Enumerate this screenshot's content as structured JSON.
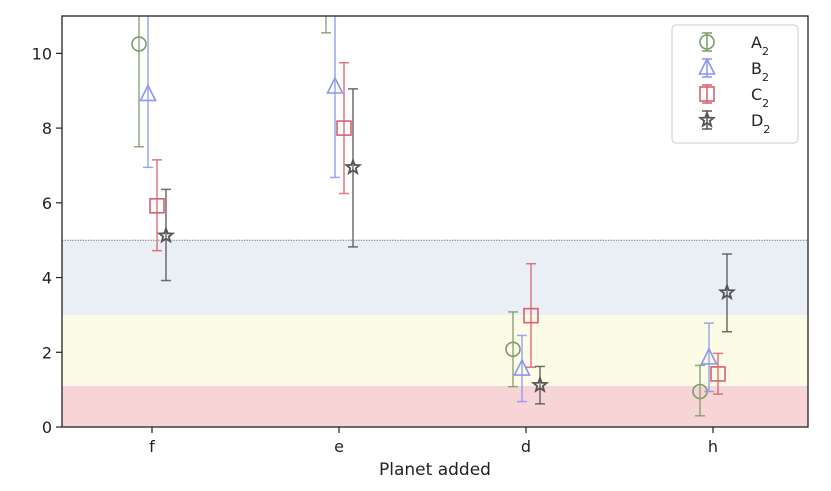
{
  "chart_data": {
    "type": "scatter",
    "subtype": "error-bar",
    "categories": [
      "f",
      "e",
      "d",
      "h"
    ],
    "xlabel": "Planet added",
    "ylabel": "",
    "ylim": [
      0,
      11
    ],
    "yticks": [
      0,
      2,
      4,
      6,
      8,
      10
    ],
    "grid": false,
    "legend_position": "top-right",
    "reference_line": {
      "y": 5,
      "style": "dotted",
      "color": "#555555"
    },
    "bands": [
      {
        "y0": 0,
        "y1": 1.1,
        "color": "#f7d4d6"
      },
      {
        "y0": 1.1,
        "y1": 3.0,
        "color": "#fbfbe6"
      },
      {
        "y0": 3.0,
        "y1": 5.0,
        "color": "#e9eff5"
      }
    ],
    "series": [
      {
        "name": "A",
        "subscript": "2",
        "marker": "circle",
        "color": "#7d9b6a",
        "values": [
          10.25,
          11.3,
          2.08,
          0.95
        ],
        "err_low": [
          7.5,
          10.55,
          1.08,
          0.3
        ],
        "err_high": [
          11.5,
          11.5,
          3.08,
          1.65
        ]
      },
      {
        "name": "B",
        "subscript": "2",
        "marker": "triangle",
        "color": "#8b96f0",
        "values": [
          8.9,
          9.1,
          1.55,
          1.85
        ],
        "err_low": [
          6.95,
          6.68,
          0.68,
          0.95
        ],
        "err_high": [
          11.5,
          11.5,
          2.45,
          2.78
        ]
      },
      {
        "name": "C",
        "subscript": "2",
        "marker": "square",
        "color": "#d9606e",
        "values": [
          5.92,
          8.0,
          2.98,
          1.42
        ],
        "err_low": [
          4.72,
          6.25,
          1.6,
          0.88
        ],
        "err_high": [
          7.15,
          9.75,
          4.37,
          1.97
        ]
      },
      {
        "name": "D",
        "subscript": "2",
        "marker": "star",
        "color": "#555555",
        "values": [
          5.12,
          6.95,
          1.12,
          3.6
        ],
        "err_low": [
          3.92,
          4.82,
          0.62,
          2.55
        ],
        "err_high": [
          6.36,
          9.05,
          1.62,
          4.63
        ]
      }
    ]
  }
}
